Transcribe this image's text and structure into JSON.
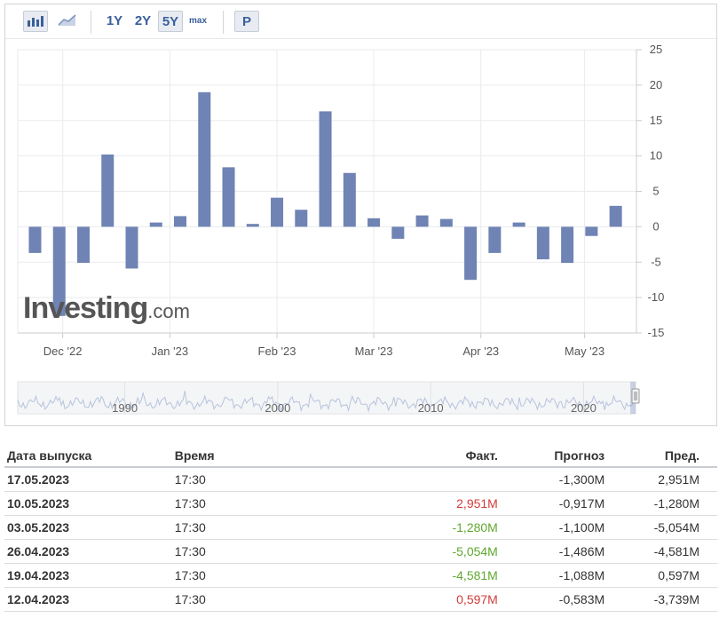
{
  "toolbar": {
    "btn_1y": "1Y",
    "btn_2y": "2Y",
    "btn_5y": "5Y",
    "btn_max": "max",
    "btn_p": "P",
    "active_range": "5Y"
  },
  "chart_data": {
    "type": "bar",
    "x": [
      "2022-11-23",
      "2022-11-30",
      "2022-12-07",
      "2022-12-14",
      "2022-12-21",
      "2022-12-28",
      "2023-01-04",
      "2023-01-11",
      "2023-01-18",
      "2023-01-25",
      "2023-02-01",
      "2023-02-08",
      "2023-02-15",
      "2023-02-22",
      "2023-03-01",
      "2023-03-08",
      "2023-03-15",
      "2023-03-22",
      "2023-03-29",
      "2023-04-05",
      "2023-04-12",
      "2023-04-19",
      "2023-04-26",
      "2023-05-03",
      "2023-05-10"
    ],
    "values": [
      -3.7,
      -12.6,
      -5.1,
      10.2,
      -5.9,
      0.6,
      1.5,
      19.0,
      8.4,
      0.4,
      4.1,
      2.4,
      16.3,
      7.6,
      1.2,
      -1.7,
      1.6,
      1.1,
      -7.5,
      -3.7,
      0.6,
      -4.6,
      -5.1,
      -1.3,
      2.95
    ],
    "xticks": [
      "Dec '22",
      "Jan '23",
      "Feb '23",
      "Mar '23",
      "Apr '23",
      "May '23"
    ],
    "yticks": [
      25,
      20,
      15,
      10,
      5,
      0,
      -5,
      -10,
      -15
    ],
    "ylim": [
      -15,
      25
    ],
    "grid": true,
    "bar_color": "#6f83b4"
  },
  "navigator": {
    "labels": [
      "1990",
      "2000",
      "2010",
      "2020"
    ]
  },
  "watermark": {
    "brand": "Investing",
    "suffix": ".com"
  },
  "table": {
    "headers": {
      "date": "Дата выпуска",
      "time": "Время",
      "actual": "Факт.",
      "forecast": "Прогноз",
      "previous": "Пред."
    },
    "rows": [
      {
        "date": "17.05.2023",
        "time": "17:30",
        "actual": "",
        "actual_color": "",
        "forecast": "-1,300M",
        "previous": "2,951M"
      },
      {
        "date": "10.05.2023",
        "time": "17:30",
        "actual": "2,951M",
        "actual_color": "#d23b3b",
        "forecast": "-0,917M",
        "previous": "-1,280M"
      },
      {
        "date": "03.05.2023",
        "time": "17:30",
        "actual": "-1,280M",
        "actual_color": "#5fa82f",
        "forecast": "-1,100M",
        "previous": "-5,054M"
      },
      {
        "date": "26.04.2023",
        "time": "17:30",
        "actual": "-5,054M",
        "actual_color": "#5fa82f",
        "forecast": "-1,486M",
        "previous": "-4,581M"
      },
      {
        "date": "19.04.2023",
        "time": "17:30",
        "actual": "-4,581M",
        "actual_color": "#5fa82f",
        "forecast": "-1,088M",
        "previous": "0,597M"
      },
      {
        "date": "12.04.2023",
        "time": "17:30",
        "actual": "0,597M",
        "actual_color": "#d23b3b",
        "forecast": "-0,583M",
        "previous": "-3,739M"
      }
    ]
  }
}
